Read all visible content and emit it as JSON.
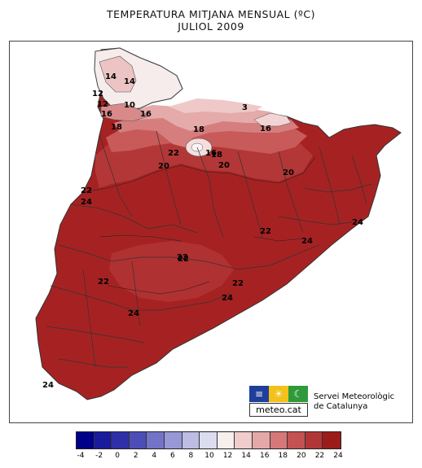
{
  "header": {
    "title": "TEMPERATURA MITJANA MENSUAL (ºC)",
    "subtitle": "JULIOL 2009"
  },
  "map": {
    "contour_labels": [
      "14",
      "14",
      "12",
      "12",
      "16",
      "10",
      "16",
      "18",
      "18",
      "16",
      "16",
      "18",
      "20",
      "22",
      "20",
      "20",
      "22",
      "22",
      "24",
      "24",
      "24",
      "22",
      "22",
      "22",
      "22",
      "24",
      "24",
      "24",
      "3"
    ]
  },
  "branding": {
    "logo_text": "meteo.cat",
    "org_line1": "Servei Meteorològic",
    "org_line2": "de Catalunya"
  },
  "legend": {
    "ticks": [
      "-4",
      "-2",
      "0",
      "2",
      "4",
      "6",
      "8",
      "10",
      "12",
      "14",
      "16",
      "18",
      "20",
      "22",
      "24"
    ],
    "colors": [
      "#000088",
      "#1a1a9c",
      "#2f2fa8",
      "#4d4db8",
      "#7373c8",
      "#9898d8",
      "#bcbce4",
      "#dcdcf0",
      "#f7eeee",
      "#f0cccc",
      "#e4a8a8",
      "#d67878",
      "#c45252",
      "#b23636",
      "#9c1c1c"
    ]
  }
}
